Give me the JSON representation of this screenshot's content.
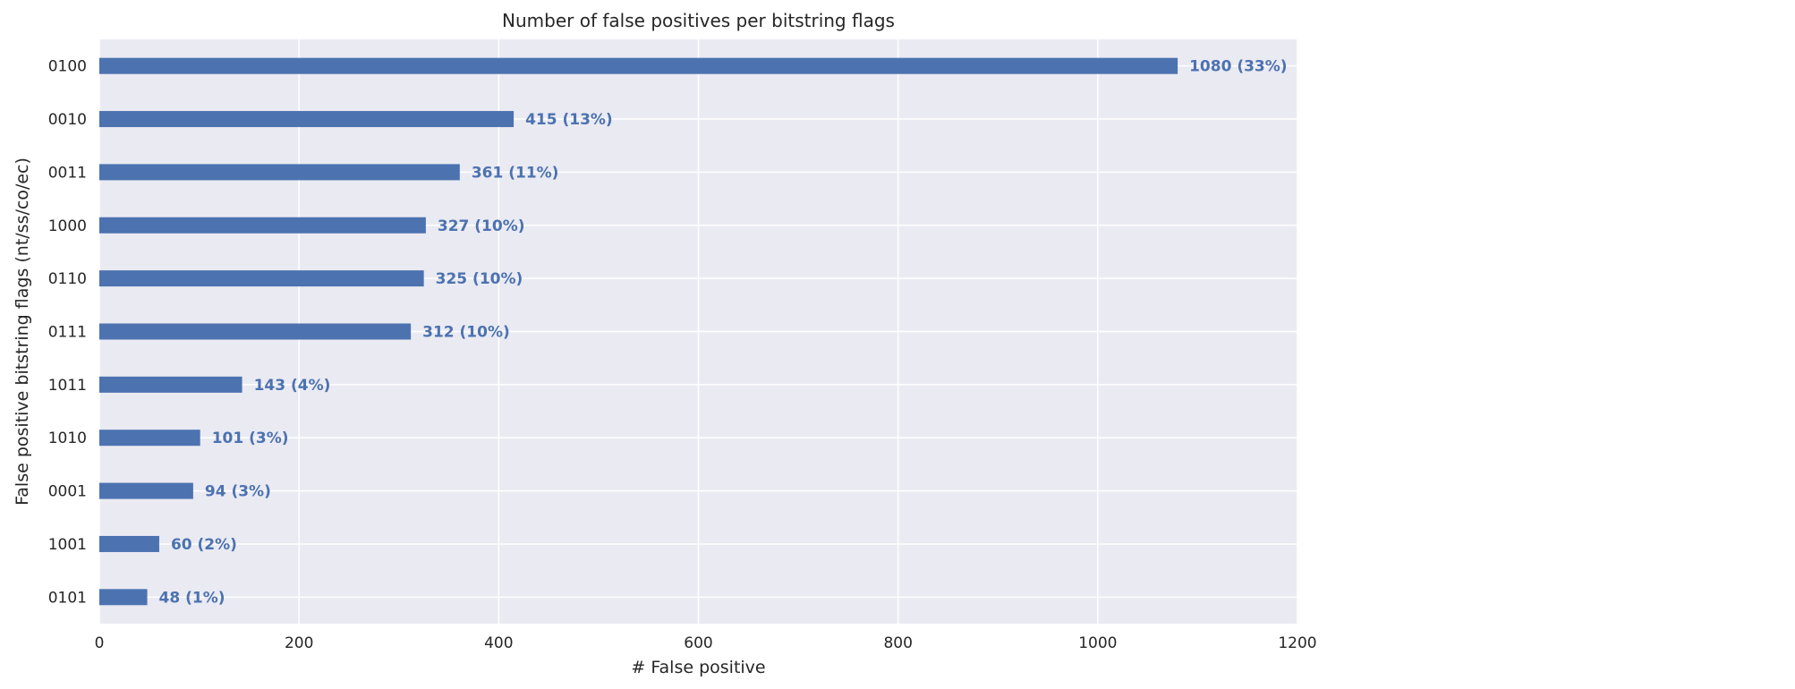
{
  "chart_data": {
    "type": "bar",
    "orientation": "horizontal",
    "title": "Number of false positives per bitstring flags",
    "xlabel": "# False positive",
    "ylabel": "False positive bitstring flags (nt/ss/co/ec)",
    "xlim": [
      0,
      1200
    ],
    "xticks": [
      "0",
      "200",
      "400",
      "600",
      "800",
      "1000",
      "1200"
    ],
    "grid": true,
    "categories": [
      "0100",
      "0010",
      "0011",
      "1000",
      "0110",
      "0111",
      "1011",
      "1010",
      "0001",
      "1001",
      "0101"
    ],
    "values": [
      1080,
      415,
      361,
      327,
      325,
      312,
      143,
      101,
      94,
      60,
      48
    ],
    "data_labels": [
      "1080 (33%)",
      "415 (13%)",
      "361 (11%)",
      "327 (10%)",
      "325 (10%)",
      "312 (10%)",
      "143 (4%)",
      "101 (3%)",
      "94 (3%)",
      "60 (2%)",
      "48 (1%)"
    ],
    "colors": {
      "bar": "#4c72b0",
      "label": "#4c72b0",
      "background": "#eaeaf2",
      "grid": "#ffffff"
    }
  }
}
